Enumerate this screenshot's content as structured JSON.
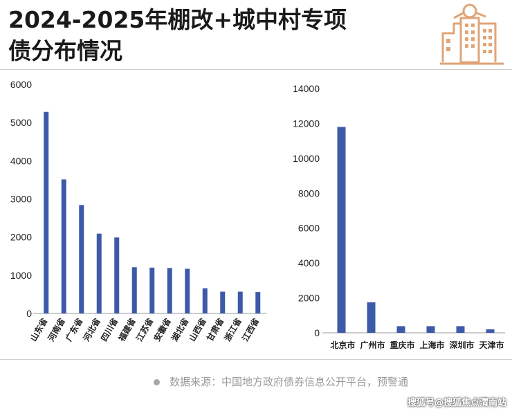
{
  "header": {
    "title_line1": "2024-2025年棚改+城中村专项",
    "title_line2": "债分布情况"
  },
  "icons": {
    "header_icon": "building-icon",
    "source_bullet": "bullet-dot-icon"
  },
  "colors": {
    "bar": "#3d5aa8",
    "icon": "#e0a477",
    "text": "#1a1a1a",
    "source": "#9a9a9a"
  },
  "source": {
    "text": "数据来源：中国地方政府债券信息公开平台，预警通"
  },
  "watermark": {
    "text": "搜狐号@搜狐焦点渭南站"
  },
  "chart_data": [
    {
      "type": "bar",
      "categories": [
        "山东省",
        "河南省",
        "广东省",
        "河北省",
        "四川省",
        "福建省",
        "江苏省",
        "安徽省",
        "湖北省",
        "山西省",
        "甘肃省",
        "浙江省",
        "江西省"
      ],
      "values": [
        5280,
        3510,
        2840,
        2090,
        1990,
        1210,
        1200,
        1190,
        1170,
        660,
        570,
        570,
        560
      ],
      "ylim": [
        0,
        6000
      ],
      "yticks": [
        0,
        1000,
        2000,
        3000,
        4000,
        5000,
        6000
      ],
      "grid": false,
      "legend": "none"
    },
    {
      "type": "bar",
      "categories": [
        "北京市",
        "广州市",
        "重庆市",
        "上海市",
        "深圳市",
        "天津市"
      ],
      "values": [
        11800,
        1750,
        380,
        380,
        380,
        200
      ],
      "ylim": [
        0,
        14000
      ],
      "yticks": [
        0,
        2000,
        4000,
        6000,
        8000,
        10000,
        12000,
        14000
      ],
      "grid": false,
      "legend": "none"
    }
  ]
}
